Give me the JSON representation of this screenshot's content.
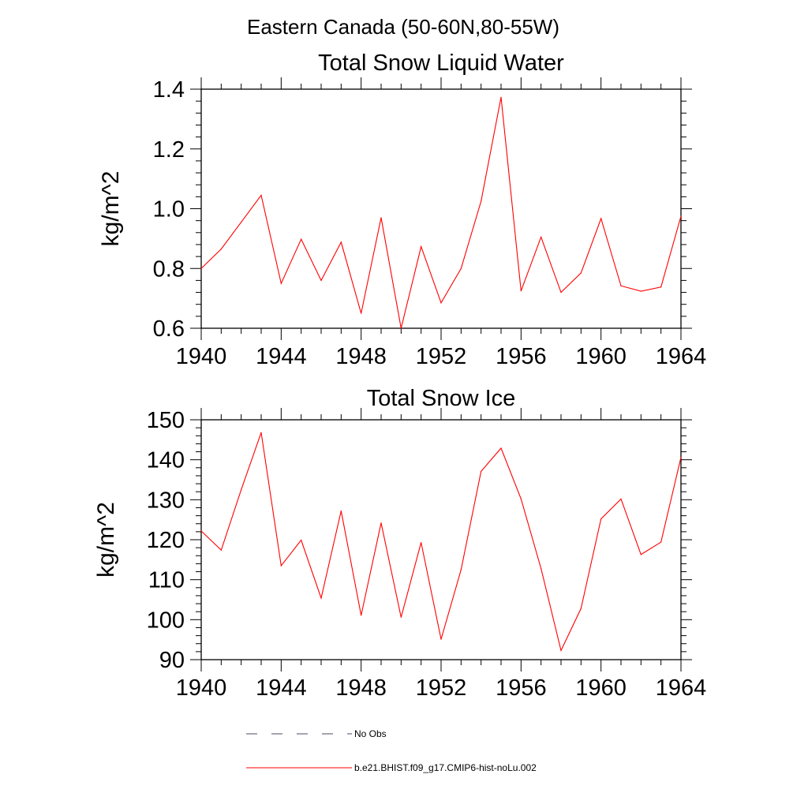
{
  "figure": {
    "suptitle": "Eastern Canada (50-60N,80-55W)"
  },
  "chart_data": [
    {
      "type": "line",
      "title": "Total Snow Liquid Water",
      "xlabel": "",
      "ylabel": "kg/m^2",
      "xlim": [
        1940,
        1964
      ],
      "ylim": [
        0.6,
        1.4
      ],
      "xticks": [
        1940,
        1944,
        1948,
        1952,
        1956,
        1960,
        1964
      ],
      "yticks": [
        0.6,
        0.8,
        1.0,
        1.2,
        1.4
      ],
      "ytick_labels": [
        "0.6",
        "0.8",
        "1.0",
        "1.2",
        "1.4"
      ],
      "grid": false,
      "series": [
        {
          "name": "b.e21.BHIST.f09_g17.CMIP6-hist-noLu.002",
          "color": "#ff0000",
          "x": [
            1940,
            1941,
            1942,
            1943,
            1944,
            1945,
            1946,
            1947,
            1948,
            1949,
            1950,
            1951,
            1952,
            1953,
            1954,
            1955,
            1956,
            1957,
            1958,
            1959,
            1960,
            1961,
            1962,
            1963,
            1964
          ],
          "y": [
            0.8,
            0.865,
            0.955,
            1.045,
            0.75,
            0.898,
            0.76,
            0.888,
            0.65,
            0.97,
            0.6,
            0.873,
            0.685,
            0.8,
            1.025,
            1.373,
            0.725,
            0.905,
            0.72,
            0.785,
            0.967,
            0.742,
            0.724,
            0.738,
            0.975
          ]
        }
      ]
    },
    {
      "type": "line",
      "title": "Total Snow Ice",
      "xlabel": "",
      "ylabel": "kg/m^2",
      "xlim": [
        1940,
        1964
      ],
      "ylim": [
        90,
        150
      ],
      "xticks": [
        1940,
        1944,
        1948,
        1952,
        1956,
        1960,
        1964
      ],
      "yticks": [
        90,
        100,
        110,
        120,
        130,
        140,
        150
      ],
      "ytick_labels": [
        "90",
        "100",
        "110",
        "120",
        "130",
        "140",
        "150"
      ],
      "grid": false,
      "series": [
        {
          "name": "b.e21.BHIST.f09_g17.CMIP6-hist-noLu.002",
          "color": "#ff0000",
          "x": [
            1940,
            1941,
            1942,
            1943,
            1944,
            1945,
            1946,
            1947,
            1948,
            1949,
            1950,
            1951,
            1952,
            1953,
            1954,
            1955,
            1956,
            1957,
            1958,
            1959,
            1960,
            1961,
            1962,
            1963,
            1964
          ],
          "y": [
            122.2,
            117.4,
            132.5,
            146.8,
            113.5,
            119.9,
            105.4,
            127.2,
            101.1,
            124.2,
            100.6,
            119.3,
            95.1,
            112.5,
            137.1,
            142.9,
            130.2,
            112.8,
            92.3,
            102.8,
            125.2,
            130.2,
            116.3,
            119.4,
            140.6
          ]
        }
      ]
    }
  ],
  "legend": {
    "placement": "bottom",
    "entries": [
      {
        "label": "No Obs",
        "color": "#4a4a66",
        "dash": "dashed"
      },
      {
        "label": "b.e21.BHIST.f09_g17.CMIP6-hist-noLu.002",
        "color": "#ff0000",
        "dash": "solid"
      }
    ]
  }
}
